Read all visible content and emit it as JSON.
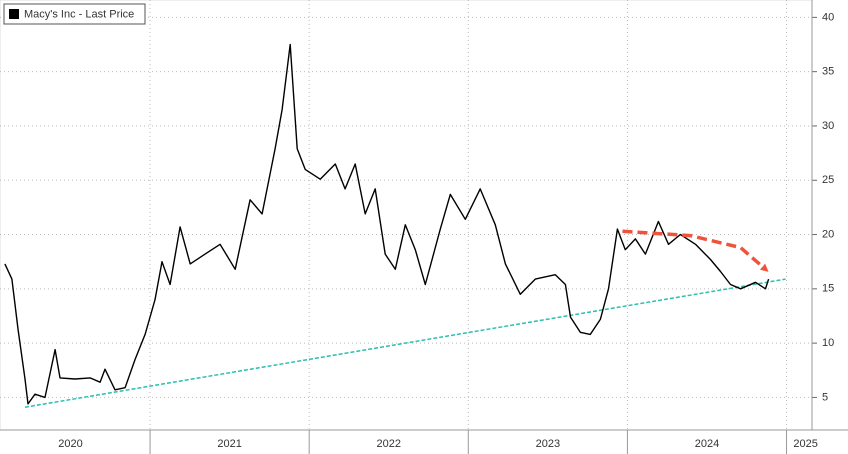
{
  "chart_data": {
    "type": "line",
    "legend_label": "Macy's Inc - Last Price",
    "x": [
      2020.088,
      2020.132,
      2020.17,
      2020.214,
      2020.233,
      2020.277,
      2020.34,
      2020.403,
      2020.434,
      2020.528,
      2020.623,
      2020.686,
      2020.717,
      2020.78,
      2020.843,
      2020.906,
      2020.969,
      2021.031,
      2021.075,
      2021.126,
      2021.189,
      2021.252,
      2021.346,
      2021.44,
      2021.535,
      2021.629,
      2021.704,
      2021.786,
      2021.83,
      2021.881,
      2021.925,
      2021.975,
      2022.069,
      2022.164,
      2022.226,
      2022.289,
      2022.352,
      2022.415,
      2022.478,
      2022.541,
      2022.604,
      2022.667,
      2022.73,
      2022.824,
      2022.887,
      2022.981,
      2023.075,
      2023.17,
      2023.233,
      2023.327,
      2023.421,
      2023.547,
      2023.61,
      2023.642,
      2023.704,
      2023.767,
      2023.83,
      2023.881,
      2023.937,
      2023.987,
      2024.05,
      2024.113,
      2024.195,
      2024.258,
      2024.333,
      2024.428,
      2024.522,
      2024.585,
      2024.648,
      2024.711,
      2024.805,
      2024.868,
      2024.887
    ],
    "series": [
      {
        "name": "Macy's Inc - Last Price",
        "color": "#000000",
        "values": [
          17.3,
          15.9,
          11.3,
          6.7,
          4.4,
          5.3,
          5.0,
          9.4,
          6.8,
          6.7,
          6.8,
          6.4,
          7.6,
          5.7,
          5.9,
          8.5,
          10.8,
          14.0,
          17.5,
          15.4,
          20.7,
          17.3,
          18.2,
          19.1,
          16.8,
          23.2,
          21.9,
          27.9,
          31.5,
          37.5,
          27.9,
          26.0,
          25.1,
          26.5,
          24.2,
          26.5,
          21.9,
          24.2,
          18.2,
          16.8,
          20.9,
          18.6,
          15.4,
          20.5,
          23.7,
          21.4,
          24.2,
          20.9,
          17.3,
          14.5,
          15.9,
          16.3,
          15.4,
          12.4,
          11.0,
          10.8,
          12.2,
          15.0,
          20.5,
          18.6,
          19.6,
          18.2,
          21.2,
          19.1,
          20.0,
          19.1,
          17.7,
          16.6,
          15.4,
          15.0,
          15.6,
          15.0,
          15.9
        ]
      }
    ],
    "trendline": {
      "color": "#2bbfb0",
      "x": [
        2020.214,
        2024.994
      ],
      "values": [
        4.1,
        15.9
      ]
    },
    "arrow": {
      "color": "#f0533d",
      "x": [
        2023.969,
        2024.396,
        2024.711,
        2024.868
      ],
      "values": [
        20.3,
        19.9,
        18.8,
        16.8
      ]
    },
    "xlim": [
      2020.057,
      2025.16
    ],
    "xticks": [
      {
        "value": 2020.5,
        "label": "2020"
      },
      {
        "value": 2021.5,
        "label": "2021"
      },
      {
        "value": 2022.5,
        "label": "2022"
      },
      {
        "value": 2023.5,
        "label": "2023"
      },
      {
        "value": 2024.5,
        "label": "2024"
      },
      {
        "value": 2025.12,
        "label": "2025"
      }
    ],
    "xgrid": [
      2021,
      2022,
      2023,
      2024,
      2025
    ],
    "ylim": [
      2,
      41.6
    ],
    "yticks": [
      5,
      10,
      15,
      20,
      25,
      30,
      35,
      40
    ],
    "grid": true
  }
}
